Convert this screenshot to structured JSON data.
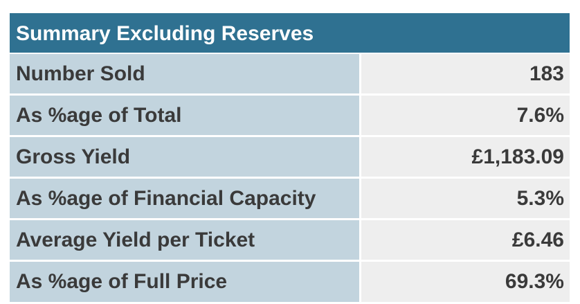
{
  "table": {
    "title": "Summary Excluding Reserves",
    "rows": [
      {
        "label": "Number Sold",
        "value": "183"
      },
      {
        "label": "As %age of Total",
        "value": "7.6%"
      },
      {
        "label": "Gross Yield",
        "value": "£1,183.09"
      },
      {
        "label": "As %age of Financial Capacity",
        "value": "5.3%"
      },
      {
        "label": "Average Yield per Ticket",
        "value": "£6.46"
      },
      {
        "label": "As %age of Full Price",
        "value": "69.3%"
      }
    ]
  },
  "colors": {
    "header_bg": "#2f7191",
    "label_bg": "#c2d4de",
    "value_bg": "#eeeeee"
  }
}
